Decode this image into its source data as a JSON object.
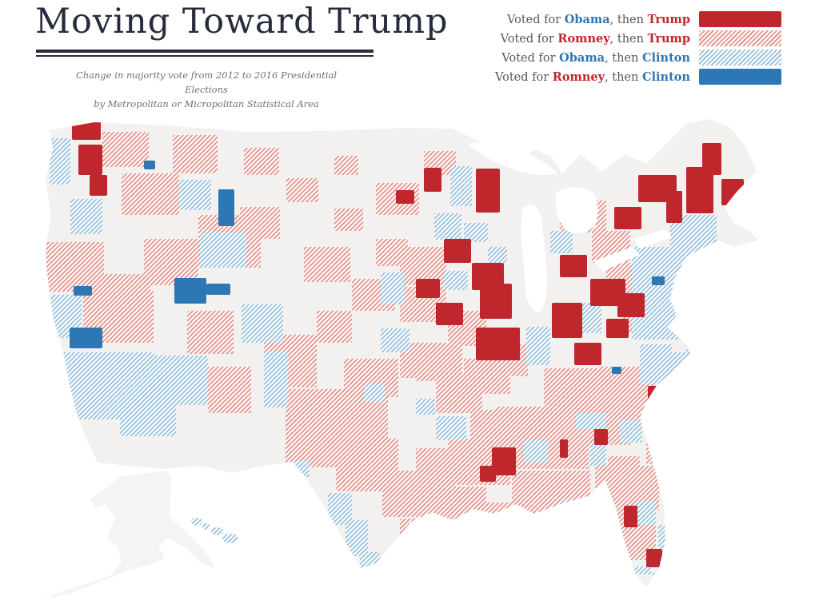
{
  "header": {
    "title": "Moving Toward Trump",
    "subtitle_line1": "Change in majority vote from 2012 to 2016 Presidential Elections",
    "subtitle_line2": "by Metropolitan or Micropolitan Statistical Area"
  },
  "legend": {
    "items": [
      {
        "parts": [
          {
            "t": "Voted for "
          },
          {
            "t": "Obama",
            "c": "blue",
            "b": true
          },
          {
            "t": ", then "
          },
          {
            "t": "Trump",
            "c": "red",
            "b": true
          }
        ],
        "swatch": "solid_red",
        "name": "obama-then-trump"
      },
      {
        "parts": [
          {
            "t": "Voted for "
          },
          {
            "t": "Romney",
            "c": "red",
            "b": true
          },
          {
            "t": ", then "
          },
          {
            "t": "Trump",
            "c": "red",
            "b": true
          }
        ],
        "swatch": "hatch_red",
        "name": "romney-then-trump"
      },
      {
        "parts": [
          {
            "t": "Voted for "
          },
          {
            "t": "Obama",
            "c": "blue",
            "b": true
          },
          {
            "t": ", then "
          },
          {
            "t": "Clinton",
            "c": "blue",
            "b": true
          }
        ],
        "swatch": "hatch_blue",
        "name": "obama-then-clinton"
      },
      {
        "parts": [
          {
            "t": "Voted for "
          },
          {
            "t": "Romney",
            "c": "red",
            "b": true
          },
          {
            "t": ", then "
          },
          {
            "t": "Clinton",
            "c": "blue",
            "b": true
          }
        ],
        "swatch": "solid_blue",
        "name": "romney-then-clinton"
      }
    ]
  },
  "colors": {
    "title_ink": "#262b3e",
    "text_gray": "#57585a",
    "subtitle_gray": "#6f6f6f",
    "name_blue": "#2e77b5",
    "name_red": "#c0272d",
    "solid_red": "#c0272d",
    "solid_blue": "#2e77b5",
    "hatch_red": "#e4968f",
    "hatch_blue": "#9cc3de",
    "land_gray": "#f2f1ef",
    "alaska_gray": "#f4f4f2",
    "lake_white": "#ffffff"
  },
  "map": {
    "categories": {
      "ot": "Voted for Obama, then Trump",
      "rt": "Voted for Romney, then Trump",
      "oc": "Voted for Obama, then Clinton",
      "rc": "Voted for Romney, then Clinton"
    },
    "patches": [
      [
        90,
        20,
        36,
        24,
        "ot"
      ],
      [
        98,
        50,
        30,
        38,
        "ot"
      ],
      [
        112,
        88,
        22,
        26,
        "ot"
      ],
      [
        180,
        70,
        14,
        11,
        "rc"
      ],
      [
        62,
        42,
        26,
        58,
        "oc"
      ],
      [
        128,
        34,
        58,
        44,
        "rt"
      ],
      [
        152,
        86,
        72,
        52,
        "rt"
      ],
      [
        88,
        118,
        40,
        44,
        "oc"
      ],
      [
        58,
        172,
        72,
        62,
        "rt"
      ],
      [
        58,
        238,
        44,
        54,
        "oc"
      ],
      [
        104,
        232,
        88,
        66,
        "rt"
      ],
      [
        216,
        38,
        56,
        48,
        "rt"
      ],
      [
        224,
        94,
        40,
        38,
        "oc"
      ],
      [
        248,
        138,
        78,
        66,
        "rt"
      ],
      [
        273,
        106,
        20,
        46,
        "rc"
      ],
      [
        92,
        227,
        23,
        12,
        "rc"
      ],
      [
        87,
        279,
        41,
        26,
        "rc"
      ],
      [
        110,
        212,
        78,
        70,
        "rt"
      ],
      [
        75,
        310,
        118,
        84,
        "oc"
      ],
      [
        150,
        360,
        70,
        55,
        "oc"
      ],
      [
        188,
        314,
        72,
        62,
        "oc"
      ],
      [
        260,
        328,
        54,
        58,
        "rt"
      ],
      [
        305,
        54,
        44,
        34,
        "rt"
      ],
      [
        358,
        92,
        40,
        30,
        "rt"
      ],
      [
        300,
        128,
        50,
        40,
        "rt"
      ],
      [
        418,
        64,
        30,
        24,
        "rt"
      ],
      [
        180,
        168,
        68,
        58,
        "rt"
      ],
      [
        234,
        258,
        58,
        54,
        "rt"
      ],
      [
        218,
        217,
        40,
        32,
        "rc"
      ],
      [
        258,
        224,
        30,
        14,
        "rc"
      ],
      [
        250,
        160,
        58,
        44,
        "oc"
      ],
      [
        302,
        250,
        52,
        48,
        "oc"
      ],
      [
        330,
        309,
        30,
        70,
        "oc"
      ],
      [
        357,
        356,
        128,
        98,
        "rt"
      ],
      [
        330,
        288,
        66,
        66,
        "rt"
      ],
      [
        367,
        446,
        20,
        20,
        "oc"
      ],
      [
        380,
        178,
        58,
        44,
        "rt"
      ],
      [
        440,
        218,
        54,
        40,
        "rt"
      ],
      [
        396,
        258,
        44,
        40,
        "rt"
      ],
      [
        470,
        168,
        40,
        34,
        "rt"
      ],
      [
        500,
        228,
        58,
        44,
        "rt"
      ],
      [
        430,
        318,
        68,
        48,
        "rt"
      ],
      [
        500,
        298,
        54,
        44,
        "rt"
      ],
      [
        545,
        338,
        58,
        48,
        "rt"
      ],
      [
        470,
        98,
        54,
        40,
        "rt"
      ],
      [
        530,
        58,
        40,
        30,
        "rt"
      ],
      [
        418,
        130,
        36,
        28,
        "rt"
      ],
      [
        476,
        280,
        36,
        30,
        "oc"
      ],
      [
        455,
        350,
        26,
        22,
        "oc"
      ],
      [
        520,
        368,
        24,
        20,
        "oc"
      ],
      [
        530,
        79,
        22,
        30,
        "ot"
      ],
      [
        495,
        107,
        23,
        17,
        "ot"
      ],
      [
        595,
        80,
        30,
        55,
        "ot"
      ],
      [
        563,
        77,
        27,
        50,
        "oc"
      ],
      [
        543,
        136,
        34,
        33,
        "oc"
      ],
      [
        555,
        168,
        34,
        30,
        "ot"
      ],
      [
        590,
        198,
        40,
        34,
        "ot"
      ],
      [
        600,
        224,
        40,
        44,
        "ot"
      ],
      [
        595,
        279,
        55,
        41,
        "ot"
      ],
      [
        520,
        218,
        30,
        24,
        "ot"
      ],
      [
        545,
        248,
        34,
        28,
        "ot"
      ],
      [
        580,
        148,
        30,
        24,
        "oc"
      ],
      [
        610,
        178,
        24,
        20,
        "oc"
      ],
      [
        555,
        208,
        30,
        24,
        "oc"
      ],
      [
        500,
        178,
        58,
        48,
        "rt"
      ],
      [
        560,
        258,
        48,
        44,
        "rt"
      ],
      [
        520,
        298,
        58,
        48,
        "rt"
      ],
      [
        580,
        318,
        58,
        44,
        "rt"
      ],
      [
        620,
        300,
        40,
        40,
        "rt"
      ],
      [
        476,
        210,
        30,
        40,
        "oc"
      ],
      [
        700,
        120,
        58,
        40,
        "rt"
      ],
      [
        740,
        158,
        48,
        40,
        "rt"
      ],
      [
        700,
        188,
        34,
        28,
        "ot"
      ],
      [
        738,
        218,
        44,
        34,
        "ot"
      ],
      [
        690,
        248,
        38,
        44,
        "ot"
      ],
      [
        718,
        298,
        34,
        28,
        "ot"
      ],
      [
        758,
        268,
        28,
        24,
        "ot"
      ],
      [
        688,
        158,
        28,
        28,
        "oc"
      ],
      [
        728,
        248,
        24,
        38,
        "oc"
      ],
      [
        658,
        278,
        30,
        48,
        "oc"
      ],
      [
        680,
        330,
        68,
        48,
        "rt"
      ],
      [
        748,
        328,
        58,
        44,
        "rt"
      ],
      [
        772,
        236,
        34,
        30,
        "ot"
      ],
      [
        790,
        178,
        86,
        116,
        "oc"
      ],
      [
        838,
        138,
        58,
        68,
        "oc"
      ],
      [
        858,
        248,
        56,
        76,
        "oc"
      ],
      [
        858,
        78,
        34,
        58,
        "ot"
      ],
      [
        878,
        48,
        24,
        40,
        "ot"
      ],
      [
        902,
        93,
        28,
        33,
        "ot"
      ],
      [
        798,
        88,
        48,
        34,
        "ot"
      ],
      [
        768,
        128,
        34,
        28,
        "ot"
      ],
      [
        833,
        108,
        20,
        40,
        "ot"
      ],
      [
        815,
        215,
        16,
        11,
        "rc"
      ],
      [
        758,
        198,
        48,
        44,
        "rt"
      ],
      [
        778,
        248,
        44,
        38,
        "rt"
      ],
      [
        800,
        300,
        40,
        50,
        "oc"
      ],
      [
        838,
        310,
        30,
        40,
        "oc"
      ],
      [
        770,
        330,
        50,
        45,
        "rt"
      ],
      [
        730,
        360,
        60,
        50,
        "rt"
      ],
      [
        790,
        360,
        40,
        40,
        "rt"
      ],
      [
        620,
        378,
        116,
        78,
        "rt"
      ],
      [
        700,
        358,
        88,
        68,
        "rt"
      ],
      [
        560,
        418,
        78,
        58,
        "rt"
      ],
      [
        640,
        458,
        98,
        68,
        "rt"
      ],
      [
        600,
        498,
        88,
        48,
        "rt"
      ],
      [
        810,
        352,
        20,
        34,
        "ot"
      ],
      [
        743,
        406,
        17,
        20,
        "ot"
      ],
      [
        700,
        419,
        10,
        23,
        "ot"
      ],
      [
        615,
        429,
        30,
        35,
        "ot"
      ],
      [
        720,
        386,
        38,
        20,
        "oc"
      ],
      [
        737,
        424,
        21,
        28,
        "oc"
      ],
      [
        700,
        495,
        34,
        38,
        "oc"
      ],
      [
        655,
        420,
        30,
        28,
        "oc"
      ],
      [
        775,
        395,
        28,
        28,
        "oc"
      ],
      [
        808,
        420,
        24,
        30,
        "rt"
      ],
      [
        760,
        440,
        40,
        36,
        "rt"
      ],
      [
        765,
        328,
        12,
        9,
        "rc"
      ],
      [
        744,
        452,
        80,
        56,
        "rt"
      ],
      [
        770,
        500,
        50,
        70,
        "rt"
      ],
      [
        797,
        496,
        23,
        30,
        "oc"
      ],
      [
        823,
        526,
        20,
        30,
        "oc"
      ],
      [
        780,
        502,
        17,
        27,
        "ot"
      ],
      [
        808,
        556,
        20,
        23,
        "ot"
      ],
      [
        788,
        578,
        26,
        10,
        "oc"
      ],
      [
        816,
        586,
        18,
        8,
        "oc"
      ],
      [
        420,
        418,
        78,
        66,
        "rt"
      ],
      [
        478,
        458,
        88,
        58,
        "rt"
      ],
      [
        500,
        518,
        58,
        48,
        "rt"
      ],
      [
        540,
        478,
        68,
        58,
        "rt"
      ],
      [
        410,
        486,
        30,
        40,
        "oc"
      ],
      [
        432,
        520,
        28,
        45,
        "oc"
      ],
      [
        450,
        560,
        25,
        35,
        "oc"
      ],
      [
        600,
        452,
        20,
        20,
        "ot"
      ],
      [
        560,
        430,
        40,
        30,
        "rt"
      ],
      [
        520,
        430,
        40,
        34,
        "rt"
      ],
      [
        588,
        382,
        40,
        36,
        "rt"
      ],
      [
        545,
        390,
        38,
        30,
        "oc"
      ],
      [
        628,
        428,
        26,
        22,
        "rt"
      ]
    ],
    "hawaii": [
      [
        246,
        522,
        7,
        5
      ],
      [
        258,
        528,
        5,
        4
      ],
      [
        272,
        534,
        8,
        5
      ],
      [
        288,
        543,
        10,
        6
      ]
    ]
  }
}
